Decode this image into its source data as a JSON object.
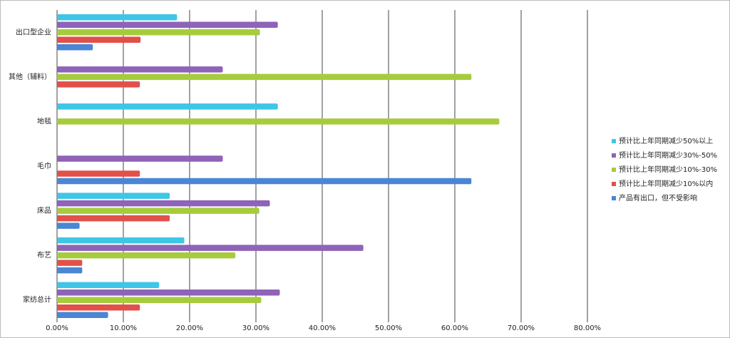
{
  "chart_data": {
    "type": "bar",
    "orientation": "horizontal",
    "categories": [
      "出口型企业",
      "其他（辅料）",
      "地毯",
      "毛巾",
      "床品",
      "布艺",
      "家纺总计"
    ],
    "series": [
      {
        "name": "预计比上年同期减少50%以上",
        "color": "#3fc6e6",
        "values": [
          18.1,
          null,
          33.3,
          null,
          17.0,
          19.2,
          15.4
        ]
      },
      {
        "name": "预计比上年同期减少30%-50%",
        "color": "#8e63b8",
        "values": [
          33.3,
          25.0,
          null,
          25.0,
          32.1,
          46.2,
          33.6
        ]
      },
      {
        "name": "预计比上年同期减少10%-30%",
        "color": "#a6cc3e",
        "values": [
          30.6,
          62.5,
          66.7,
          null,
          30.5,
          26.9,
          30.8
        ]
      },
      {
        "name": "预计比上年同期减少10%以内",
        "color": "#e2504a",
        "values": [
          12.6,
          12.5,
          null,
          12.5,
          17.0,
          3.8,
          12.5
        ]
      },
      {
        "name": "产品有出口，但不受影响",
        "color": "#4a86d4",
        "values": [
          5.4,
          null,
          null,
          62.5,
          3.4,
          3.8,
          7.7
        ]
      }
    ],
    "xlim": [
      0,
      80
    ],
    "xticks": [
      {
        "value": 0,
        "label": "0.00%"
      },
      {
        "value": 10,
        "label": "10.00%"
      },
      {
        "value": 20,
        "label": "20.00%"
      },
      {
        "value": 30,
        "label": "30.00%"
      },
      {
        "value": 40,
        "label": "40.00%"
      },
      {
        "value": 50,
        "label": "50.00%"
      },
      {
        "value": 60,
        "label": "60.00%"
      },
      {
        "value": 70,
        "label": "70.00%"
      },
      {
        "value": 80,
        "label": "80.00%"
      }
    ],
    "grid": true,
    "legend": "right"
  }
}
